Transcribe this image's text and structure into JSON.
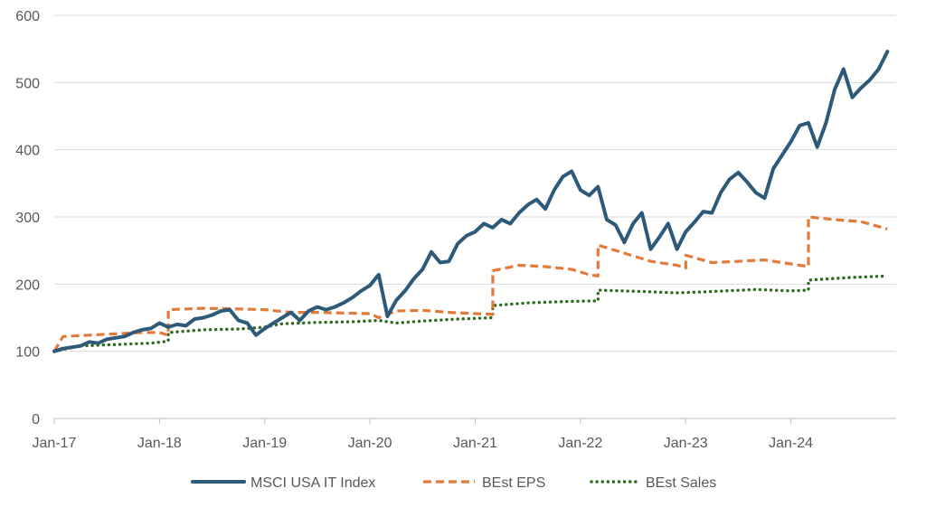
{
  "chart_data": {
    "type": "line",
    "title": "",
    "xlabel": "",
    "ylabel": "",
    "ylim": [
      0,
      600
    ],
    "y_ticks": [
      0,
      100,
      200,
      300,
      400,
      500,
      600
    ],
    "x_range": [
      "2017-01",
      "2024-12"
    ],
    "x_ticks": [
      {
        "date": "2017-01",
        "label": "Jan-17"
      },
      {
        "date": "2018-01",
        "label": "Jan-18"
      },
      {
        "date": "2019-01",
        "label": "Jan-19"
      },
      {
        "date": "2020-01",
        "label": "Jan-20"
      },
      {
        "date": "2021-01",
        "label": "Jan-21"
      },
      {
        "date": "2022-01",
        "label": "Jan-22"
      },
      {
        "date": "2023-01",
        "label": "Jan-23"
      },
      {
        "date": "2024-01",
        "label": "Jan-24"
      }
    ],
    "grid": true,
    "legend_position": "bottom",
    "series": [
      {
        "name": "MSCI USA IT Index",
        "style": "solid",
        "color": "#2E5A7A",
        "points": [
          [
            "2017-01",
            100
          ],
          [
            "2017-02",
            104
          ],
          [
            "2017-03",
            106
          ],
          [
            "2017-04",
            108
          ],
          [
            "2017-05",
            114
          ],
          [
            "2017-06",
            112
          ],
          [
            "2017-07",
            118
          ],
          [
            "2017-08",
            120
          ],
          [
            "2017-09",
            122
          ],
          [
            "2017-10",
            128
          ],
          [
            "2017-11",
            132
          ],
          [
            "2017-12",
            134
          ],
          [
            "2018-01",
            142
          ],
          [
            "2018-02",
            136
          ],
          [
            "2018-03",
            140
          ],
          [
            "2018-04",
            138
          ],
          [
            "2018-05",
            148
          ],
          [
            "2018-06",
            150
          ],
          [
            "2018-07",
            154
          ],
          [
            "2018-08",
            160
          ],
          [
            "2018-09",
            162
          ],
          [
            "2018-10",
            146
          ],
          [
            "2018-11",
            142
          ],
          [
            "2018-12",
            124
          ],
          [
            "2019-01",
            134
          ],
          [
            "2019-02",
            142
          ],
          [
            "2019-03",
            150
          ],
          [
            "2019-04",
            158
          ],
          [
            "2019-05",
            146
          ],
          [
            "2019-06",
            160
          ],
          [
            "2019-07",
            166
          ],
          [
            "2019-08",
            162
          ],
          [
            "2019-09",
            166
          ],
          [
            "2019-10",
            172
          ],
          [
            "2019-11",
            180
          ],
          [
            "2019-12",
            190
          ],
          [
            "2020-01",
            198
          ],
          [
            "2020-02",
            214
          ],
          [
            "2020-03",
            152
          ],
          [
            "2020-04",
            176
          ],
          [
            "2020-05",
            190
          ],
          [
            "2020-06",
            208
          ],
          [
            "2020-07",
            222
          ],
          [
            "2020-08",
            248
          ],
          [
            "2020-09",
            232
          ],
          [
            "2020-10",
            234
          ],
          [
            "2020-11",
            260
          ],
          [
            "2020-12",
            272
          ],
          [
            "2021-01",
            278
          ],
          [
            "2021-02",
            290
          ],
          [
            "2021-03",
            284
          ],
          [
            "2021-04",
            296
          ],
          [
            "2021-05",
            290
          ],
          [
            "2021-06",
            306
          ],
          [
            "2021-07",
            318
          ],
          [
            "2021-08",
            326
          ],
          [
            "2021-09",
            312
          ],
          [
            "2021-10",
            340
          ],
          [
            "2021-11",
            360
          ],
          [
            "2021-12",
            368
          ],
          [
            "2022-01",
            340
          ],
          [
            "2022-02",
            332
          ],
          [
            "2022-03",
            345
          ],
          [
            "2022-04",
            296
          ],
          [
            "2022-05",
            288
          ],
          [
            "2022-06",
            262
          ],
          [
            "2022-07",
            290
          ],
          [
            "2022-08",
            306
          ],
          [
            "2022-09",
            252
          ],
          [
            "2022-10",
            270
          ],
          [
            "2022-11",
            290
          ],
          [
            "2022-12",
            252
          ],
          [
            "2023-01",
            278
          ],
          [
            "2023-02",
            292
          ],
          [
            "2023-03",
            308
          ],
          [
            "2023-04",
            306
          ],
          [
            "2023-05",
            336
          ],
          [
            "2023-06",
            356
          ],
          [
            "2023-07",
            366
          ],
          [
            "2023-08",
            352
          ],
          [
            "2023-09",
            336
          ],
          [
            "2023-10",
            328
          ],
          [
            "2023-11",
            372
          ],
          [
            "2023-12",
            392
          ],
          [
            "2024-01",
            412
          ],
          [
            "2024-02",
            436
          ],
          [
            "2024-03",
            440
          ],
          [
            "2024-04",
            404
          ],
          [
            "2024-05",
            440
          ],
          [
            "2024-06",
            490
          ],
          [
            "2024-07",
            520
          ],
          [
            "2024-08",
            478
          ],
          [
            "2024-09",
            492
          ],
          [
            "2024-10",
            504
          ],
          [
            "2024-11",
            520
          ],
          [
            "2024-12",
            546
          ]
        ]
      },
      {
        "name": "BEst EPS",
        "style": "dashed",
        "color": "#E07B39",
        "points": [
          [
            "2017-01",
            100
          ],
          [
            "2017-02",
            122
          ],
          [
            "2017-05",
            124
          ],
          [
            "2017-08",
            126
          ],
          [
            "2017-11",
            128
          ],
          [
            "2018-01",
            128
          ],
          [
            "2018-02",
            124
          ],
          [
            "2018-02",
            162
          ],
          [
            "2018-06",
            164
          ],
          [
            "2018-10",
            163
          ],
          [
            "2019-01",
            162
          ],
          [
            "2019-04",
            158
          ],
          [
            "2019-07",
            158
          ],
          [
            "2019-10",
            157
          ],
          [
            "2020-01",
            156
          ],
          [
            "2020-02",
            150
          ],
          [
            "2020-04",
            160
          ],
          [
            "2020-07",
            161
          ],
          [
            "2020-10",
            158
          ],
          [
            "2021-01",
            156
          ],
          [
            "2021-03",
            155
          ],
          [
            "2021-03",
            220
          ],
          [
            "2021-06",
            228
          ],
          [
            "2021-09",
            226
          ],
          [
            "2021-12",
            222
          ],
          [
            "2022-02",
            214
          ],
          [
            "2022-03",
            212
          ],
          [
            "2022-03",
            258
          ],
          [
            "2022-06",
            246
          ],
          [
            "2022-09",
            234
          ],
          [
            "2022-12",
            228
          ],
          [
            "2023-01",
            224
          ],
          [
            "2023-01",
            243
          ],
          [
            "2023-04",
            232
          ],
          [
            "2023-07",
            234
          ],
          [
            "2023-10",
            236
          ],
          [
            "2024-01",
            230
          ],
          [
            "2024-03",
            226
          ],
          [
            "2024-03",
            300
          ],
          [
            "2024-06",
            296
          ],
          [
            "2024-09",
            293
          ],
          [
            "2024-12",
            282
          ]
        ]
      },
      {
        "name": "BEst Sales",
        "style": "dotted",
        "color": "#2E6B1F",
        "points": [
          [
            "2017-01",
            100
          ],
          [
            "2017-04",
            108
          ],
          [
            "2017-08",
            110
          ],
          [
            "2017-12",
            112
          ],
          [
            "2018-02",
            115
          ],
          [
            "2018-02",
            128
          ],
          [
            "2018-06",
            132
          ],
          [
            "2018-10",
            133
          ],
          [
            "2019-01",
            136
          ],
          [
            "2019-03",
            141
          ],
          [
            "2019-07",
            143
          ],
          [
            "2019-11",
            144
          ],
          [
            "2020-02",
            146
          ],
          [
            "2020-04",
            142
          ],
          [
            "2020-07",
            145
          ],
          [
            "2020-11",
            148
          ],
          [
            "2021-03",
            150
          ],
          [
            "2021-03",
            168
          ],
          [
            "2021-07",
            172
          ],
          [
            "2021-11",
            174
          ],
          [
            "2022-03",
            175
          ],
          [
            "2022-03",
            191
          ],
          [
            "2022-08",
            189
          ],
          [
            "2022-12",
            187
          ],
          [
            "2023-04",
            189
          ],
          [
            "2023-09",
            192
          ],
          [
            "2024-01",
            190
          ],
          [
            "2024-03",
            191
          ],
          [
            "2024-03",
            206
          ],
          [
            "2024-08",
            210
          ],
          [
            "2024-12",
            212
          ]
        ]
      }
    ]
  }
}
